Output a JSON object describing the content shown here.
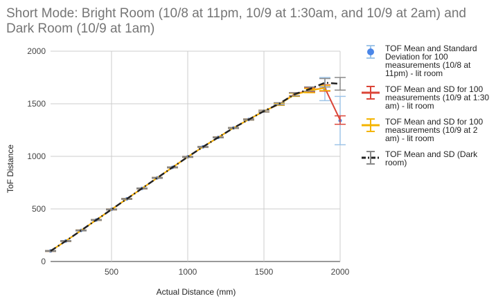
{
  "chart_data": {
    "type": "line",
    "title": "Short Mode: Bright Room (10/8 at 11pm, 10/9 at 1:30am, and 10/9 at 2am) and Dark Room (10/9 at 1am)",
    "xlabel": "Actual Distance (mm)",
    "ylabel": "ToF Distance",
    "xlim": [
      100,
      2000
    ],
    "ylim": [
      0,
      2000
    ],
    "x_ticks": [
      "500",
      "1000",
      "1500",
      "2000"
    ],
    "y_ticks": [
      "0",
      "500",
      "1000",
      "1500",
      "2000"
    ],
    "grid": "vertical",
    "legend_position": "right",
    "series": [
      {
        "name": "TOF Mean and Standard Deviation for 100 measurements (10/8 at 11pm) - lit room",
        "color": "#4a86e8",
        "style": "points",
        "x": [
          100,
          200,
          300,
          400,
          500,
          600,
          700,
          800,
          900,
          1000,
          1100,
          1200,
          1300,
          1400,
          1500,
          1600,
          1700,
          1800,
          1900,
          2000
        ],
        "y": [
          100,
          195,
          295,
          395,
          495,
          595,
          695,
          795,
          895,
          995,
          1090,
          1180,
          1270,
          1350,
          1430,
          1495,
          1590,
          1640,
          1640,
          1340
        ],
        "sd": [
          4,
          4,
          4,
          4,
          4,
          4,
          4,
          4,
          4,
          4,
          4,
          4,
          4,
          5,
          8,
          10,
          15,
          20,
          110,
          230
        ]
      },
      {
        "name": "TOF Mean and SD for 100 measurements (10/9 at 1:30 am) - lit room",
        "color": "#db4437",
        "style": "line",
        "x": [
          100,
          200,
          300,
          400,
          500,
          600,
          700,
          800,
          900,
          1000,
          1100,
          1200,
          1300,
          1400,
          1500,
          1600,
          1700,
          1800,
          1900,
          2000
        ],
        "y": [
          100,
          195,
          295,
          395,
          495,
          595,
          695,
          795,
          895,
          995,
          1090,
          1180,
          1270,
          1350,
          1430,
          1495,
          1590,
          1630,
          1650,
          1345
        ],
        "sd": [
          4,
          4,
          4,
          4,
          4,
          4,
          4,
          4,
          4,
          4,
          4,
          4,
          4,
          5,
          8,
          10,
          15,
          20,
          30,
          40
        ]
      },
      {
        "name": "TOF Mean and SD for 100 measurements (10/9 at 2 am) - lit room",
        "color": "#f4b400",
        "style": "line",
        "x": [
          100,
          200,
          300,
          400,
          500,
          600,
          700,
          800,
          900,
          1000,
          1100,
          1200,
          1300,
          1400,
          1500,
          1600,
          1700,
          1800,
          1900
        ],
        "y": [
          100,
          195,
          295,
          395,
          495,
          595,
          695,
          795,
          895,
          995,
          1090,
          1180,
          1270,
          1350,
          1430,
          1495,
          1585,
          1625,
          1650
        ],
        "sd": [
          4,
          4,
          4,
          4,
          4,
          4,
          4,
          4,
          4,
          4,
          4,
          4,
          4,
          5,
          8,
          10,
          15,
          20,
          25
        ]
      },
      {
        "name": "TOF Mean and SD (Dark room)",
        "color": "#222222",
        "style": "dashdot",
        "x": [
          100,
          200,
          300,
          400,
          500,
          600,
          700,
          800,
          900,
          1000,
          1100,
          1200,
          1300,
          1400,
          1500,
          1600,
          1700,
          1800,
          1900,
          2000
        ],
        "y": [
          100,
          195,
          295,
          395,
          495,
          595,
          695,
          795,
          895,
          995,
          1090,
          1180,
          1270,
          1350,
          1430,
          1500,
          1590,
          1640,
          1700,
          1690
        ],
        "sd": [
          4,
          4,
          4,
          4,
          4,
          4,
          4,
          4,
          4,
          4,
          4,
          4,
          4,
          5,
          8,
          10,
          15,
          20,
          40,
          60
        ]
      }
    ]
  }
}
